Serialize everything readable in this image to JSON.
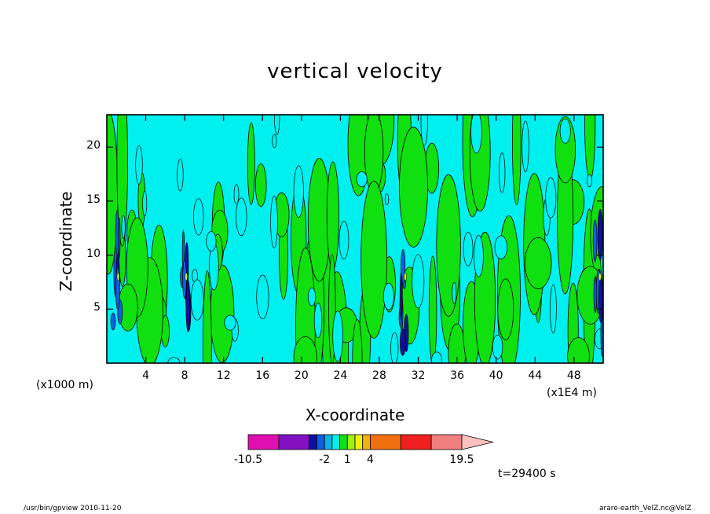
{
  "chart_data": {
    "type": "heatmap",
    "title": "vertical velocity",
    "xlabel": "X-coordinate",
    "ylabel": "Z-coordinate",
    "x_units_left": "(x1000 m)",
    "x_units_right": "(x1E4 m)",
    "x_ticks": [
      4,
      8,
      12,
      16,
      20,
      24,
      28,
      32,
      36,
      40,
      44,
      48
    ],
    "y_ticks": [
      5,
      10,
      15,
      20
    ],
    "xlim": [
      0,
      51
    ],
    "ylim": [
      0,
      23
    ],
    "colorbar": {
      "labels": [
        "-10.5",
        "-2",
        "1",
        "4",
        "19.5"
      ],
      "levels": [
        -10.5,
        -6.5,
        -4,
        -3,
        -2,
        -1,
        0,
        1,
        2,
        3,
        4,
        8,
        12,
        16,
        19.5
      ],
      "colors": [
        "#e010b0",
        "#8010c0",
        "#1010a0",
        "#1060e0",
        "#10b0e0",
        "#00f0f0",
        "#10e010",
        "#a0f010",
        "#f0f010",
        "#f0b010",
        "#f07010",
        "#f02020",
        "#f08080",
        "#ffc0c0"
      ]
    },
    "dominant_fields": {
      "negative_small": "#00f0f0",
      "positive_small": "#10e010"
    },
    "updraft_columns_x": [
      1.0,
      8.0,
      30.5,
      50.5
    ],
    "time_label": "t=29400 s"
  },
  "footer": {
    "left": "/usr/bin/gpview   2010-11-20",
    "right": "arare-earth_VelZ.nc@VelZ"
  }
}
